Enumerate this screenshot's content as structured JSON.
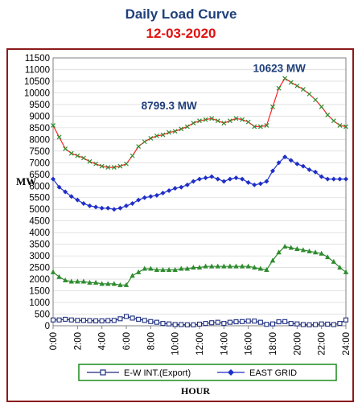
{
  "chart_data": {
    "type": "line",
    "title": "Daily Load Curve",
    "subtitle": "12-03-2020",
    "ylabel": "MW",
    "xlabel": "HOUR",
    "ylim": [
      0,
      11500
    ],
    "xlim": [
      0,
      24
    ],
    "yticks": [
      0,
      500,
      1000,
      1500,
      2000,
      2500,
      3000,
      3500,
      4000,
      4500,
      5000,
      5500,
      6000,
      6500,
      7000,
      7500,
      8000,
      8500,
      9000,
      9500,
      10000,
      10500,
      11000,
      11500
    ],
    "xtick_labels": [
      "0:00",
      "2:00",
      "4:00",
      "6:00",
      "8:00",
      "10:00",
      "12:00",
      "14:00",
      "16:00",
      "18:00",
      "20:00",
      "22:00",
      "24:00"
    ],
    "annotations": [
      {
        "text": "8799.3 MW",
        "x": 13.2,
        "y": 8799.3
      },
      {
        "text": "10623 MW",
        "x": 19.2,
        "y": 10623
      }
    ],
    "legend": {
      "position": "bottom",
      "visible_entries": [
        "E-W INT.(Export)",
        "EAST GRID"
      ]
    },
    "x": [
      0,
      0.5,
      1,
      1.5,
      2,
      2.5,
      3,
      3.5,
      4,
      4.5,
      5,
      5.5,
      6,
      6.5,
      7,
      7.5,
      8,
      8.5,
      9,
      9.5,
      10,
      10.5,
      11,
      11.5,
      12,
      12.5,
      13,
      13.5,
      14,
      14.5,
      15,
      15.5,
      16,
      16.5,
      17,
      17.5,
      18,
      18.5,
      19,
      19.5,
      20,
      20.5,
      21,
      21.5,
      22,
      22.5,
      23,
      23.5,
      24
    ],
    "series": [
      {
        "name": "",
        "color": "#2e8b2e",
        "line_color": "#ff2020",
        "marker": "x",
        "values": [
          8600,
          8100,
          7600,
          7400,
          7300,
          7200,
          7050,
          6950,
          6850,
          6800,
          6800,
          6850,
          6950,
          7300,
          7700,
          7900,
          8050,
          8150,
          8200,
          8300,
          8350,
          8450,
          8550,
          8700,
          8800,
          8850,
          8900,
          8800,
          8700,
          8800,
          8900,
          8850,
          8750,
          8550,
          8550,
          8600,
          9400,
          10200,
          10623,
          10450,
          10300,
          10150,
          9950,
          9700,
          9400,
          9050,
          8800,
          8600,
          8550
        ]
      },
      {
        "name": "EAST GRID",
        "color": "#1f2fc8",
        "marker": "diamond",
        "values": [
          6300,
          5950,
          5750,
          5550,
          5400,
          5250,
          5150,
          5100,
          5050,
          5050,
          5000,
          5050,
          5150,
          5250,
          5400,
          5500,
          5550,
          5600,
          5700,
          5800,
          5900,
          5950,
          6050,
          6200,
          6300,
          6350,
          6400,
          6300,
          6200,
          6300,
          6350,
          6300,
          6150,
          6050,
          6100,
          6200,
          6650,
          7000,
          7250,
          7100,
          6950,
          6850,
          6700,
          6600,
          6400,
          6300,
          6300,
          6300,
          6300
        ]
      },
      {
        "name": "",
        "color": "#2e8b2e",
        "marker": "triangle",
        "values": [
          2300,
          2100,
          1950,
          1900,
          1900,
          1900,
          1850,
          1850,
          1800,
          1800,
          1800,
          1750,
          1750,
          2150,
          2300,
          2450,
          2450,
          2400,
          2400,
          2400,
          2400,
          2450,
          2450,
          2500,
          2500,
          2550,
          2550,
          2550,
          2550,
          2550,
          2550,
          2550,
          2550,
          2500,
          2450,
          2400,
          2800,
          3150,
          3400,
          3350,
          3300,
          3250,
          3200,
          3150,
          3100,
          2950,
          2750,
          2500,
          2300
        ]
      },
      {
        "name": "E-W INT.(Export)",
        "color": "#1f2f80",
        "marker": "square",
        "values": [
          250,
          250,
          280,
          250,
          230,
          230,
          220,
          210,
          210,
          220,
          230,
          300,
          400,
          330,
          280,
          230,
          180,
          150,
          100,
          80,
          50,
          50,
          40,
          40,
          70,
          100,
          130,
          150,
          100,
          150,
          170,
          180,
          200,
          200,
          150,
          60,
          80,
          170,
          180,
          100,
          80,
          50,
          40,
          50,
          80,
          70,
          50,
          100,
          250
        ]
      }
    ]
  }
}
